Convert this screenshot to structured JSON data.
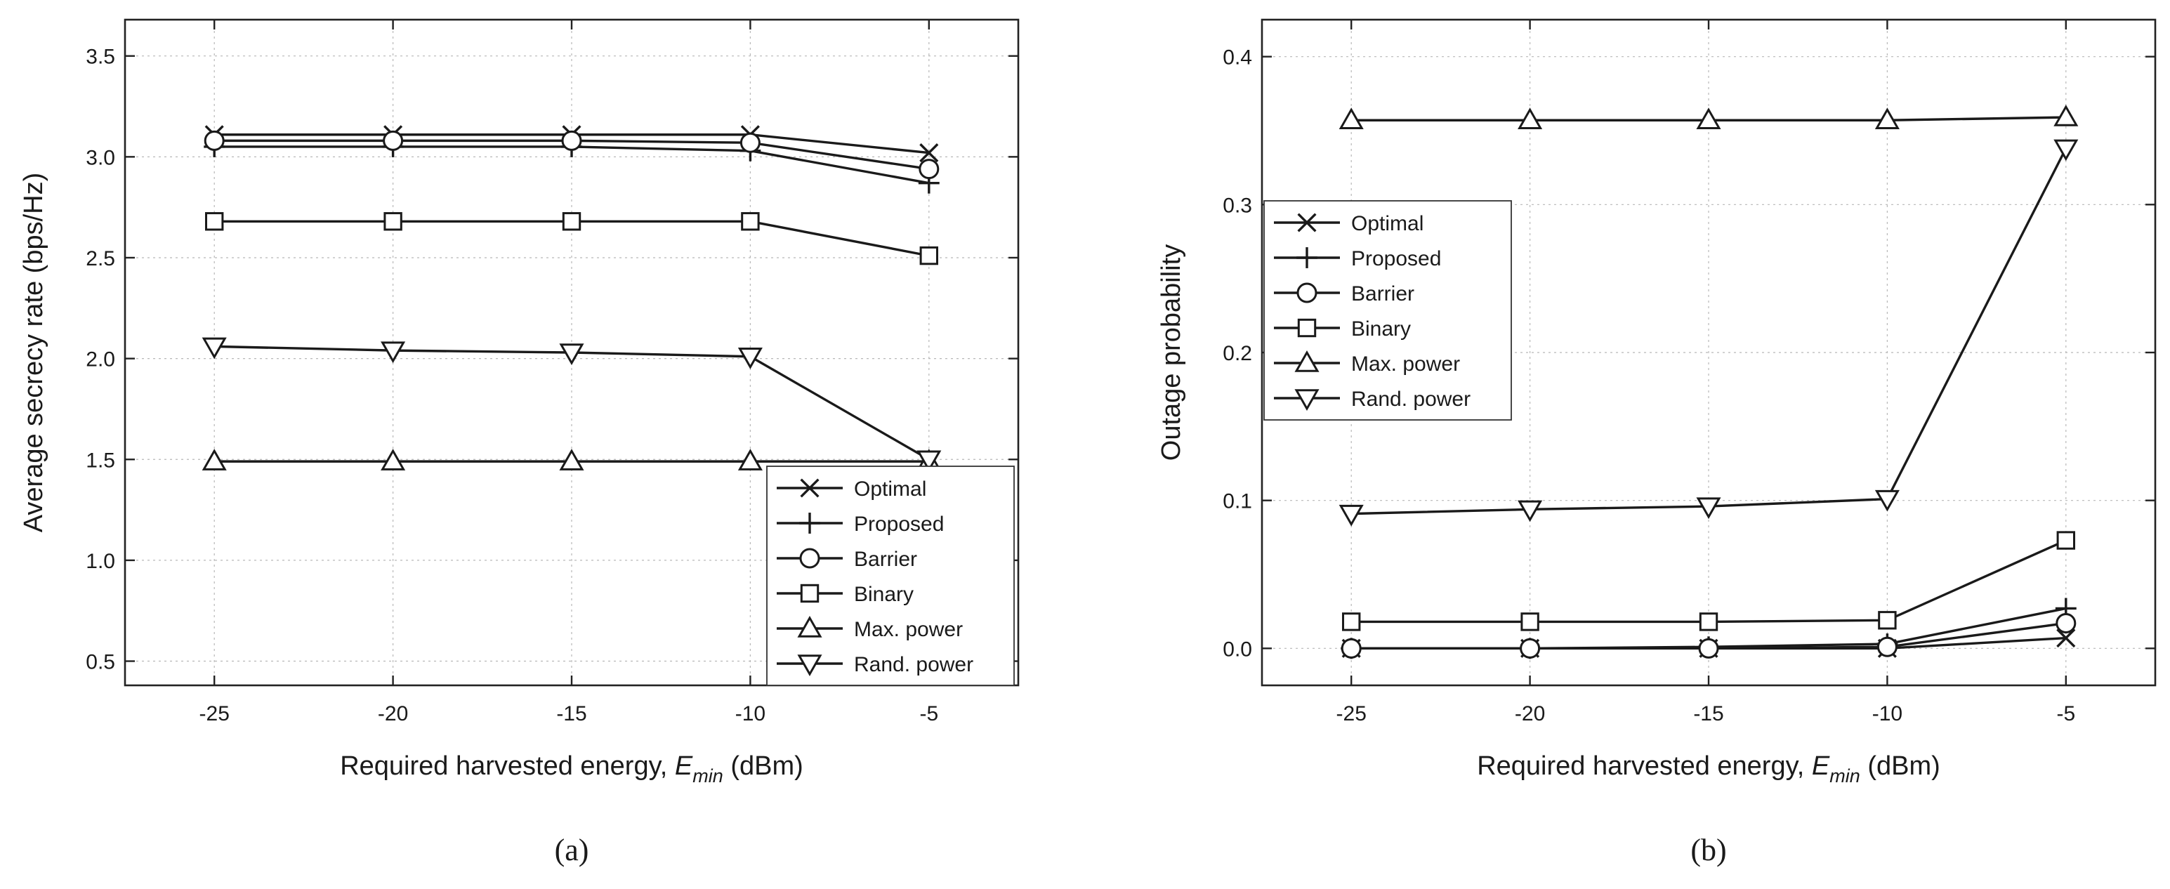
{
  "chart_data": [
    {
      "type": "line",
      "caption": "(a)",
      "xlabel": "Required harvested energy, ",
      "xlabel_symbol": "E",
      "xlabel_subscript": "min",
      "xlabel_unit": " (dBm)",
      "ylabel": "Average secrecy rate (bps/Hz)",
      "x": [
        -25,
        -20,
        -15,
        -10,
        -5
      ],
      "x_tick_labels": [
        "-25",
        "-20",
        "-15",
        "-10",
        "-5"
      ],
      "y_ticks": [
        0.5,
        1.0,
        1.5,
        2.0,
        2.5,
        3.0,
        3.5
      ],
      "y_tick_labels": [
        "0.5",
        "1.0",
        "1.5",
        "2.0",
        "2.5",
        "3.0",
        "3.5"
      ],
      "xlim": [
        -27.5,
        -2.5
      ],
      "ylim": [
        0.38,
        3.68
      ],
      "grid": true,
      "legend_position": "bottom-right",
      "series": [
        {
          "name": "Optimal",
          "marker": "x",
          "values": [
            3.11,
            3.11,
            3.11,
            3.11,
            3.02
          ]
        },
        {
          "name": "Proposed",
          "marker": "plus",
          "values": [
            3.05,
            3.05,
            3.05,
            3.03,
            2.87
          ]
        },
        {
          "name": "Barrier",
          "marker": "circle",
          "values": [
            3.08,
            3.08,
            3.08,
            3.07,
            2.94
          ]
        },
        {
          "name": "Binary",
          "marker": "square",
          "values": [
            2.68,
            2.68,
            2.68,
            2.68,
            2.51
          ]
        },
        {
          "name": "Max. power",
          "marker": "triangle",
          "values": [
            1.49,
            1.49,
            1.49,
            1.49,
            1.49
          ]
        },
        {
          "name": "Rand. power",
          "marker": "tri-down",
          "values": [
            2.06,
            2.04,
            2.03,
            2.01,
            1.5
          ]
        }
      ]
    },
    {
      "type": "line",
      "caption": "(b)",
      "xlabel": "Required harvested energy, ",
      "xlabel_symbol": "E",
      "xlabel_subscript": "min",
      "xlabel_unit": " (dBm)",
      "ylabel": "Outage probability",
      "x": [
        -25,
        -20,
        -15,
        -10,
        -5
      ],
      "x_tick_labels": [
        "-25",
        "-20",
        "-15",
        "-10",
        "-5"
      ],
      "y_ticks": [
        0.0,
        0.1,
        0.2,
        0.3,
        0.4
      ],
      "y_tick_labels": [
        "0.0",
        "0.1",
        "0.2",
        "0.3",
        "0.4"
      ],
      "xlim": [
        -27.5,
        -2.5
      ],
      "ylim": [
        -0.025,
        0.425
      ],
      "grid": true,
      "legend_position": "middle-left",
      "series": [
        {
          "name": "Optimal",
          "marker": "x",
          "values": [
            0.0,
            0.0,
            0.0,
            0.0,
            0.007
          ]
        },
        {
          "name": "Proposed",
          "marker": "plus",
          "values": [
            0.0,
            0.0,
            0.001,
            0.003,
            0.027
          ]
        },
        {
          "name": "Barrier",
          "marker": "circle",
          "values": [
            0.0,
            0.0,
            0.0,
            0.001,
            0.017
          ]
        },
        {
          "name": "Binary",
          "marker": "square",
          "values": [
            0.018,
            0.018,
            0.018,
            0.019,
            0.073
          ]
        },
        {
          "name": "Max. power",
          "marker": "triangle",
          "values": [
            0.357,
            0.357,
            0.357,
            0.357,
            0.359
          ]
        },
        {
          "name": "Rand. power",
          "marker": "tri-down",
          "values": [
            0.091,
            0.094,
            0.096,
            0.101,
            0.338
          ]
        }
      ]
    }
  ]
}
